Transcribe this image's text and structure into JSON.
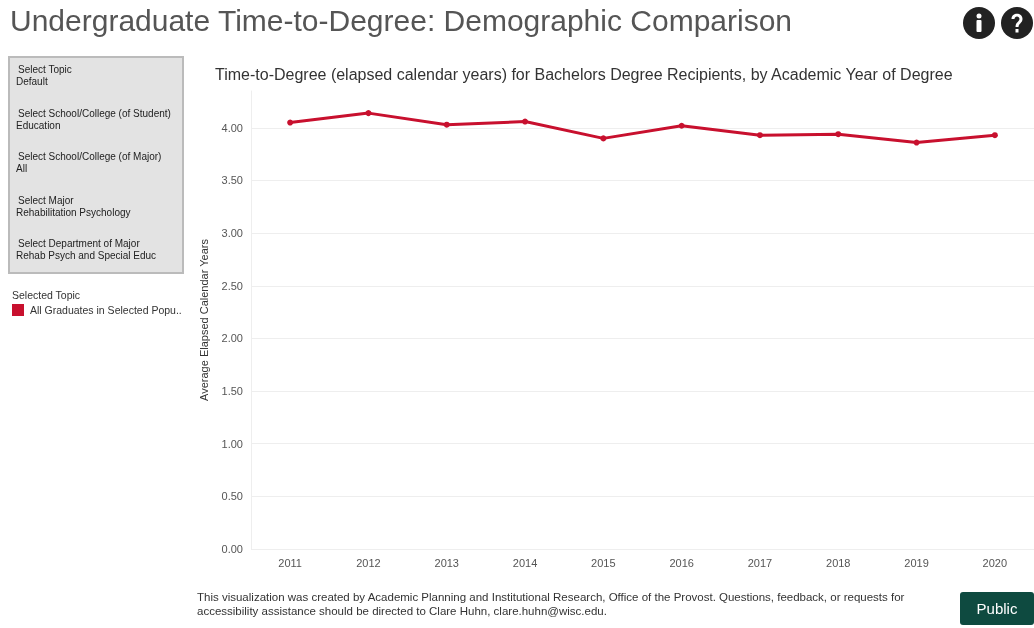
{
  "chart_data": {
    "type": "line",
    "title": "Undergraduate Time-to-Degree: Demographic Comparison",
    "subtitle": "Time-to-Degree (elapsed calendar years) for Bachelors Degree Recipients, by Academic Year of Degree",
    "ylabel": "Average Elapsed Calendar Years",
    "categories": [
      "2011",
      "2012",
      "2013",
      "2014",
      "2015",
      "2016",
      "2017",
      "2018",
      "2019",
      "2020"
    ],
    "series": [
      {
        "name": "All Graduates in Selected Popu..",
        "color": "#c8102e",
        "values": [
          4.05,
          4.14,
          4.03,
          4.06,
          3.9,
          4.02,
          3.93,
          3.94,
          3.86,
          3.93
        ]
      }
    ],
    "ylim": [
      0,
      4.35
    ],
    "yticks": [
      {
        "value": 0,
        "label": "0.00"
      },
      {
        "value": 0.5,
        "label": "0.50"
      },
      {
        "value": 1,
        "label": "1.00"
      },
      {
        "value": 1.5,
        "label": "1.50"
      },
      {
        "value": 2,
        "label": "2.00"
      },
      {
        "value": 2.5,
        "label": "2.50"
      },
      {
        "value": 3,
        "label": "3.00"
      },
      {
        "value": 3.5,
        "label": "3.50"
      },
      {
        "value": 4,
        "label": "4.00"
      }
    ],
    "grid": "y",
    "legend": "left",
    "legend_title": "Selected Topic",
    "marker": "circle",
    "line_style": "solid",
    "annotations": [
      "Select Topic",
      "Default",
      "Select School/College (of Student)",
      "Education",
      "Select School/College (of Major)",
      "All",
      "Select Major",
      "Rehabilitation Psychology",
      "Select Department of Major",
      "Rehab Psych and Special Educ",
      "This visualization was created by Academic Planning and Institutional Research, Office of the Provost. Questions, feedback, or requests for accessibility assistance should be directed to Clare Huhn, clare.huhn@wisc.edu.",
      "Public"
    ]
  }
}
